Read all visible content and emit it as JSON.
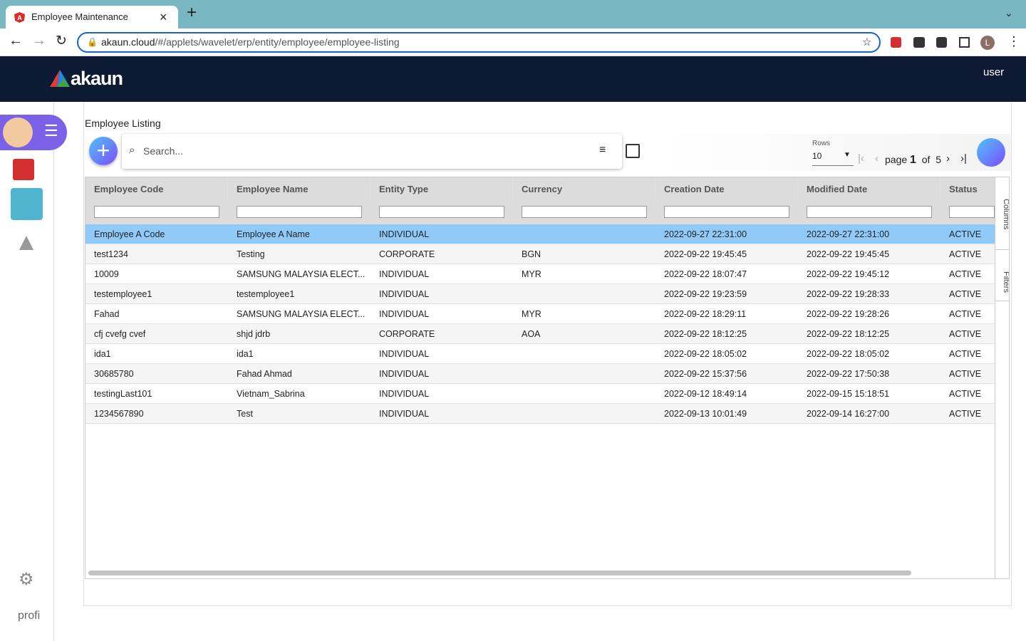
{
  "browser": {
    "tab_title": "Employee Maintenance",
    "url_domain": "akaun.cloud",
    "url_path": "/#/applets/wavelet/erp/entity/employee/employee-listing",
    "profile_initial": "L"
  },
  "app": {
    "brand": "akaun",
    "user_alt": "user",
    "profile_alt": "profi"
  },
  "page": {
    "title": "Employee Listing",
    "search_placeholder": "Search...",
    "rows_label": "Rows",
    "rows_value": "10",
    "pager": {
      "page_label": "page",
      "page": "1",
      "of_label": "of",
      "total": "5"
    }
  },
  "table": {
    "columns": [
      "Employee Code",
      "Employee Name",
      "Entity Type",
      "Currency",
      "Creation Date",
      "Modified Date",
      "Status"
    ],
    "rows": [
      [
        "Employee A Code",
        "Employee A Name",
        "INDIVIDUAL",
        null,
        "2022-09-27 22:31:00",
        "2022-09-27 22:31:00",
        "ACTIVE"
      ],
      [
        "test1234",
        "Testing",
        "CORPORATE",
        "BGN",
        "2022-09-22 19:45:45",
        "2022-09-22 19:45:45",
        "ACTIVE"
      ],
      [
        "10009",
        "SAMSUNG MALAYSIA ELECT...",
        "INDIVIDUAL",
        "MYR",
        "2022-09-22 18:07:47",
        "2022-09-22 19:45:12",
        "ACTIVE"
      ],
      [
        "testemployee1",
        "testemployee1",
        "INDIVIDUAL",
        null,
        "2022-09-22 19:23:59",
        "2022-09-22 19:28:33",
        "ACTIVE"
      ],
      [
        "Fahad",
        "SAMSUNG MALAYSIA ELECT...",
        "INDIVIDUAL",
        "MYR",
        "2022-09-22 18:29:11",
        "2022-09-22 19:28:26",
        "ACTIVE"
      ],
      [
        "cfj cvefg cvef",
        "shjd jdrb",
        "CORPORATE",
        "AOA",
        "2022-09-22 18:12:25",
        "2022-09-22 18:12:25",
        "ACTIVE"
      ],
      [
        "ida1",
        "ida1",
        "INDIVIDUAL",
        null,
        "2022-09-22 18:05:02",
        "2022-09-22 18:05:02",
        "ACTIVE"
      ],
      [
        "30685780",
        "Fahad Ahmad",
        "INDIVIDUAL",
        null,
        "2022-09-22 15:37:56",
        "2022-09-22 17:50:38",
        "ACTIVE"
      ],
      [
        "testingLast101",
        "Vietnam_Sabrina",
        "INDIVIDUAL",
        null,
        "2022-09-12 18:49:14",
        "2022-09-15 15:18:51",
        "ACTIVE"
      ],
      [
        "1234567890",
        "Test",
        "INDIVIDUAL",
        null,
        "2022-09-13 10:01:49",
        "2022-09-14 16:27:00",
        "ACTIVE"
      ]
    ]
  },
  "side_tabs": [
    "Columns",
    "Filters"
  ]
}
